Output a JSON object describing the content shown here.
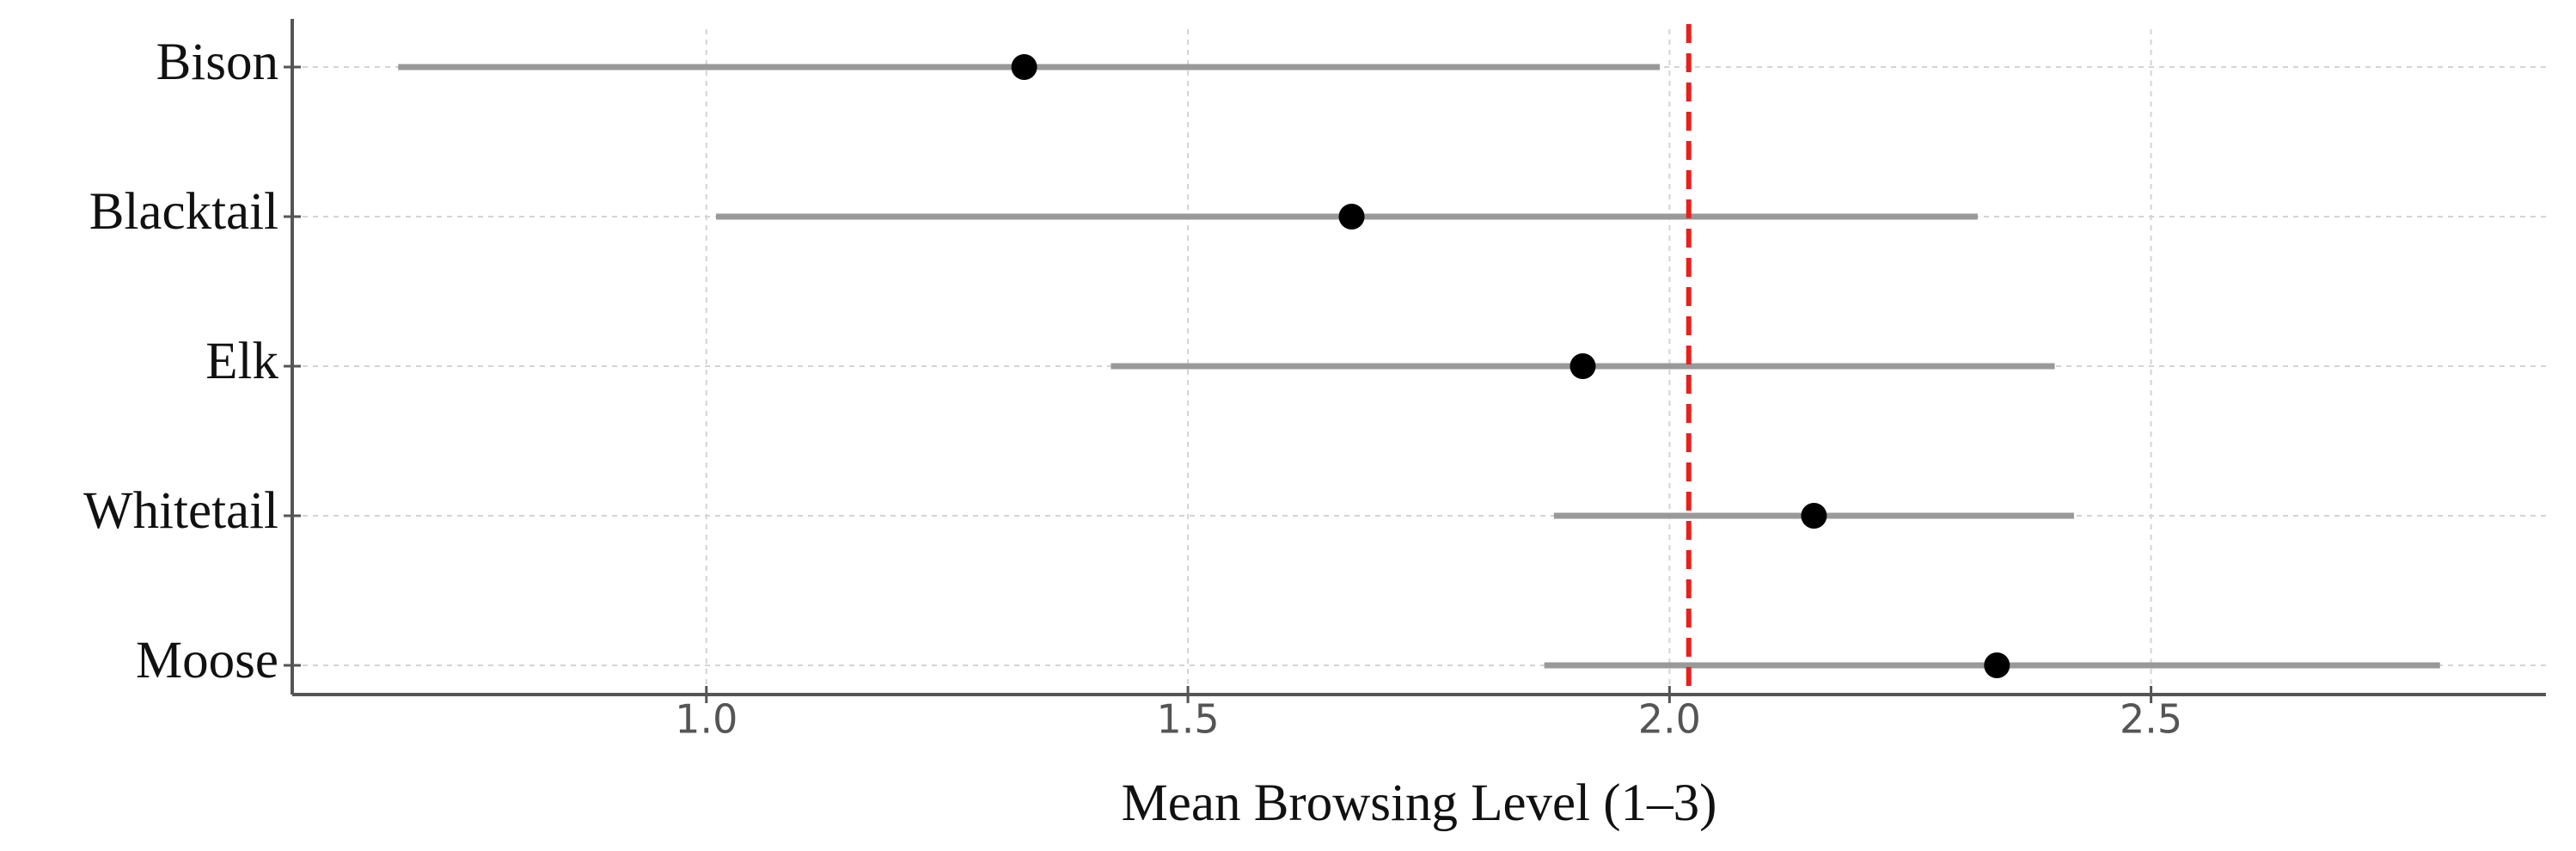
{
  "chart_data": {
    "type": "dot-interval",
    "x_label": "Mean Browsing Level (1–3)",
    "categories": [
      "Bison",
      "Blacktail",
      "Elk",
      "Whitetail",
      "Moose"
    ],
    "series": [
      {
        "color": "#000000",
        "interval_color": "#999999",
        "values": [
          1.33,
          1.67,
          1.91,
          2.15,
          2.34
        ],
        "low": [
          0.68,
          1.01,
          1.42,
          1.88,
          1.87
        ],
        "high": [
          1.99,
          2.32,
          2.4,
          2.42,
          2.8
        ]
      }
    ],
    "reference_line": {
      "value": 2.02,
      "color": "#e8201c"
    },
    "xlim": [
      0.57,
      2.91
    ],
    "xticks": [
      {
        "value": 1,
        "label": "1.0"
      },
      {
        "value": 1.5,
        "label": "1.5"
      },
      {
        "value": 2,
        "label": "2.0"
      },
      {
        "value": 2.5,
        "label": "2.5"
      }
    ],
    "grid": true
  }
}
